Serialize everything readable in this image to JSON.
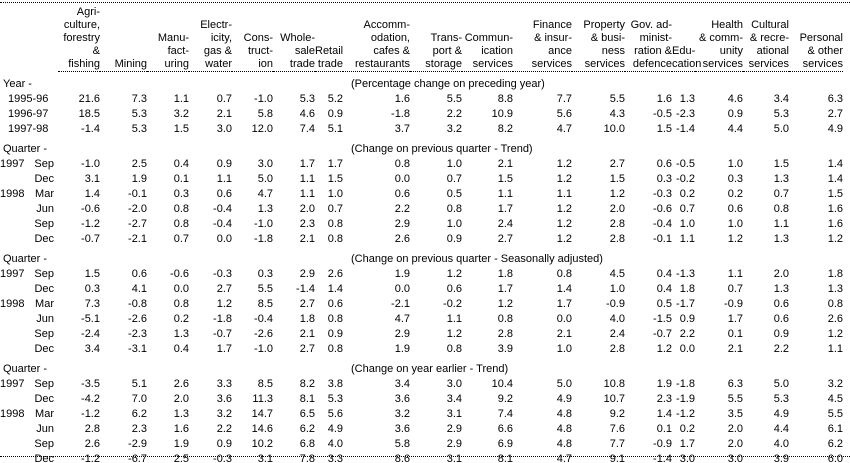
{
  "chart_data": {
    "type": "table",
    "description": "Percentage change by industry",
    "columns": [
      {
        "id": "agriculture-forestry-fishing",
        "header": "Agri-\nculture,\nforestry\n& fishing"
      },
      {
        "id": "mining",
        "header": "Mining"
      },
      {
        "id": "manufacturing",
        "header": "Manu-\nfact-\nuring"
      },
      {
        "id": "electricity-gas-water",
        "header": "Electr-\nicity,\ngas &\nwater"
      },
      {
        "id": "construction",
        "header": "Cons-\ntruct-\nion"
      },
      {
        "id": "wholesale-trade",
        "header": "Whole-\nsale\ntrade"
      },
      {
        "id": "retail-trade",
        "header": "Retail\ntrade"
      },
      {
        "id": "accommodation-cafes-restaurants",
        "header": "Accomm-\nodation,\ncafes &\nrestaurants"
      },
      {
        "id": "transport-storage",
        "header": "Trans-\nport &\nstorage"
      },
      {
        "id": "communication-services",
        "header": "Commun-\nication\nservices"
      },
      {
        "id": "finance-insurance-services",
        "header": "Finance\n& insur-\nance\nservices"
      },
      {
        "id": "property-business-services",
        "header": "Property\n& busi-\nness\nservices"
      },
      {
        "id": "govt-administration-defence",
        "header": "Gov. ad-\nminist-\nration &\ndefence"
      },
      {
        "id": "education",
        "header": "Edu-\ncation"
      },
      {
        "id": "health-community-services",
        "header": "Health\n& comm-\nunity\nservices"
      },
      {
        "id": "cultural-recreational-services",
        "header": "Cultural\n& recre-\national\nservices"
      },
      {
        "id": "personal-other-services",
        "header": "Personal\n& other\nservices"
      }
    ],
    "sections": [
      {
        "label": "Year -",
        "caption": "(Percentage change on preceding year)",
        "rows": [
          {
            "year": "1995-96",
            "quarter": "",
            "values": [
              "21.6",
              "7.3",
              "1.1",
              "0.7",
              "-1.0",
              "5.3",
              "5.2",
              "1.6",
              "5.5",
              "8.8",
              "7.7",
              "5.5",
              "1.6",
              "1.3",
              "4.6",
              "3.4",
              "6.3"
            ]
          },
          {
            "year": "1996-97",
            "quarter": "",
            "values": [
              "18.5",
              "5.3",
              "3.2",
              "2.1",
              "5.8",
              "4.6",
              "0.9",
              "-1.8",
              "2.2",
              "10.9",
              "5.6",
              "4.3",
              "-0.5",
              "-2.3",
              "0.9",
              "5.3",
              "2.7"
            ]
          },
          {
            "year": "1997-98",
            "quarter": "",
            "values": [
              "-1.4",
              "5.3",
              "1.5",
              "3.0",
              "12.0",
              "7.4",
              "5.1",
              "3.7",
              "3.2",
              "8.2",
              "4.7",
              "10.0",
              "1.5",
              "-1.4",
              "4.4",
              "5.0",
              "4.9"
            ]
          }
        ]
      },
      {
        "label": "Quarter -",
        "caption": "(Change on previous quarter - Trend)",
        "rows": [
          {
            "year": "1997",
            "quarter": "Sep",
            "values": [
              "-1.0",
              "2.5",
              "0.4",
              "0.9",
              "3.0",
              "1.7",
              "1.7",
              "0.8",
              "1.0",
              "2.1",
              "1.2",
              "2.7",
              "0.6",
              "-0.5",
              "1.0",
              "1.5",
              "1.4"
            ]
          },
          {
            "year": "",
            "quarter": "Dec",
            "values": [
              "3.1",
              "1.9",
              "0.1",
              "1.1",
              "5.0",
              "1.1",
              "1.5",
              "0.0",
              "0.7",
              "1.5",
              "1.2",
              "1.5",
              "0.3",
              "-0.2",
              "0.3",
              "1.3",
              "1.4"
            ]
          },
          {
            "year": "1998",
            "quarter": "Mar",
            "values": [
              "1.4",
              "-0.1",
              "0.3",
              "0.6",
              "4.7",
              "1.1",
              "1.0",
              "0.6",
              "0.5",
              "1.1",
              "1.1",
              "1.2",
              "-0.3",
              "0.2",
              "0.2",
              "0.7",
              "1.5"
            ]
          },
          {
            "year": "",
            "quarter": "Jun",
            "values": [
              "-0.6",
              "-2.0",
              "0.8",
              "-0.4",
              "1.3",
              "2.0",
              "0.7",
              "2.2",
              "0.8",
              "1.7",
              "1.2",
              "2.0",
              "-0.6",
              "0.7",
              "0.6",
              "0.8",
              "1.6"
            ]
          },
          {
            "year": "",
            "quarter": "Sep",
            "values": [
              "-1.2",
              "-2.7",
              "0.8",
              "-0.4",
              "-1.0",
              "2.3",
              "0.8",
              "2.9",
              "1.0",
              "2.4",
              "1.2",
              "2.8",
              "-0.4",
              "1.0",
              "1.0",
              "1.1",
              "1.6"
            ]
          },
          {
            "year": "",
            "quarter": "Dec",
            "values": [
              "-0.7",
              "-2.1",
              "0.7",
              "0.0",
              "-1.8",
              "2.1",
              "0.8",
              "2.6",
              "0.9",
              "2.7",
              "1.2",
              "2.8",
              "-0.1",
              "1.1",
              "1.2",
              "1.3",
              "1.2"
            ]
          }
        ]
      },
      {
        "label": "Quarter -",
        "caption": "(Change on previous quarter - Seasonally adjusted)",
        "rows": [
          {
            "year": "1997",
            "quarter": "Sep",
            "values": [
              "1.5",
              "0.6",
              "-0.6",
              "-0.3",
              "0.3",
              "2.9",
              "2.6",
              "1.9",
              "1.2",
              "1.8",
              "0.8",
              "4.5",
              "0.4",
              "-1.3",
              "1.1",
              "2.0",
              "1.8"
            ]
          },
          {
            "year": "",
            "quarter": "Dec",
            "values": [
              "0.3",
              "4.1",
              "0.0",
              "2.7",
              "5.5",
              "-1.4",
              "1.4",
              "0.0",
              "0.6",
              "1.7",
              "1.4",
              "1.0",
              "0.4",
              "1.8",
              "0.7",
              "1.3",
              "1.3"
            ]
          },
          {
            "year": "1998",
            "quarter": "Mar",
            "values": [
              "7.3",
              "-0.8",
              "0.8",
              "1.2",
              "8.5",
              "2.7",
              "0.6",
              "-2.1",
              "-0.2",
              "1.2",
              "1.7",
              "-0.9",
              "0.5",
              "-1.7",
              "-0.9",
              "0.6",
              "0.8"
            ]
          },
          {
            "year": "",
            "quarter": "Jun",
            "values": [
              "-5.1",
              "-2.6",
              "0.2",
              "-1.8",
              "-0.4",
              "1.8",
              "0.8",
              "4.7",
              "1.1",
              "0.8",
              "0.0",
              "4.0",
              "-1.5",
              "0.9",
              "1.7",
              "0.6",
              "2.6"
            ]
          },
          {
            "year": "",
            "quarter": "Sep",
            "values": [
              "-2.4",
              "-2.3",
              "1.3",
              "-0.7",
              "-2.6",
              "2.1",
              "0.9",
              "2.9",
              "1.2",
              "2.8",
              "2.1",
              "2.4",
              "-0.7",
              "2.2",
              "0.1",
              "0.9",
              "1.2"
            ]
          },
          {
            "year": "",
            "quarter": "Dec",
            "values": [
              "3.4",
              "-3.1",
              "0.4",
              "1.7",
              "-1.0",
              "2.7",
              "0.8",
              "1.9",
              "0.8",
              "3.9",
              "1.0",
              "2.8",
              "1.2",
              "0.0",
              "2.1",
              "2.2",
              "1.1"
            ]
          }
        ]
      },
      {
        "label": "Quarter -",
        "caption": "(Change on year earlier - Trend)",
        "rows": [
          {
            "year": "1997",
            "quarter": "Sep",
            "values": [
              "-3.5",
              "5.1",
              "2.6",
              "3.3",
              "8.5",
              "8.2",
              "3.8",
              "3.4",
              "3.0",
              "10.4",
              "5.0",
              "10.8",
              "1.9",
              "-1.8",
              "6.3",
              "5.0",
              "3.2"
            ]
          },
          {
            "year": "",
            "quarter": "Dec",
            "values": [
              "-4.2",
              "7.0",
              "2.0",
              "3.6",
              "11.3",
              "8.1",
              "5.3",
              "3.6",
              "3.4",
              "9.2",
              "4.9",
              "10.7",
              "2.3",
              "-1.9",
              "5.5",
              "5.3",
              "4.5"
            ]
          },
          {
            "year": "1998",
            "quarter": "Mar",
            "values": [
              "-1.2",
              "6.2",
              "1.3",
              "3.2",
              "14.7",
              "6.5",
              "5.6",
              "3.2",
              "3.1",
              "7.4",
              "4.8",
              "9.2",
              "1.4",
              "-1.2",
              "3.5",
              "4.9",
              "5.5"
            ]
          },
          {
            "year": "",
            "quarter": "Jun",
            "values": [
              "2.8",
              "2.3",
              "1.6",
              "2.2",
              "14.6",
              "6.2",
              "4.9",
              "3.6",
              "2.9",
              "6.6",
              "4.8",
              "7.6",
              "0.1",
              "0.2",
              "2.0",
              "4.4",
              "6.1"
            ]
          },
          {
            "year": "",
            "quarter": "Sep",
            "values": [
              "2.6",
              "-2.9",
              "1.9",
              "0.9",
              "10.2",
              "6.8",
              "4.0",
              "5.8",
              "2.9",
              "6.9",
              "4.8",
              "7.7",
              "-0.9",
              "1.7",
              "2.0",
              "4.0",
              "6.2"
            ]
          },
          {
            "year": "",
            "quarter": "Dec",
            "values": [
              "-1.2",
              "-6.7",
              "2.5",
              "-0.3",
              "3.1",
              "7.8",
              "3.3",
              "8.6",
              "3.1",
              "8.1",
              "4.7",
              "9.1",
              "-1.4",
              "3.0",
              "3.0",
              "3.9",
              "6.0"
            ]
          }
        ]
      }
    ]
  }
}
